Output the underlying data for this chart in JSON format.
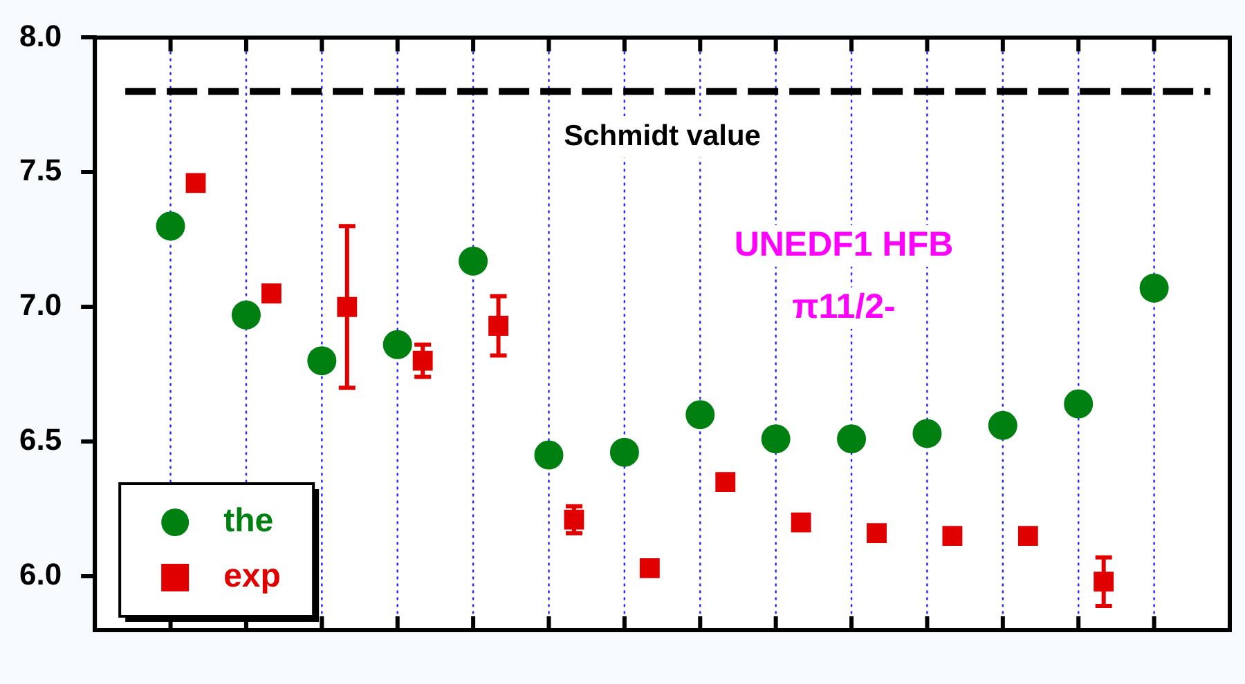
{
  "chart_data": {
    "type": "scatter",
    "annotations": [
      "UNEDF1 HFB",
      "π11/2-"
    ],
    "categories": [
      null,
      null,
      null,
      null,
      null,
      null,
      null,
      null,
      null,
      null,
      null,
      null,
      null,
      null
    ],
    "ylim": [
      5.8,
      8.0
    ],
    "yticks": [
      {
        "value": 6,
        "label": "6.0"
      },
      {
        "value": 6.5,
        "label": "6.5"
      },
      {
        "value": 7,
        "label": "7.0"
      },
      {
        "value": 7.5,
        "label": "7.5"
      },
      {
        "value": 8,
        "label": "8.0"
      }
    ],
    "grid": "x",
    "legend": "bottom left",
    "series": [
      {
        "name": "the",
        "color": "#008010",
        "marker": "circle",
        "values": [
          7.3,
          6.97,
          6.8,
          6.86,
          7.17,
          6.45,
          6.46,
          6.6,
          6.51,
          6.51,
          6.53,
          6.56,
          6.64,
          7.07
        ]
      },
      {
        "name": "exp",
        "color": "#e00000",
        "marker": "square",
        "values": [
          7.46,
          7.05,
          7.0,
          6.8,
          6.93,
          6.21,
          6.03,
          6.35,
          6.2,
          6.16,
          6.15,
          6.15,
          5.98,
          null
        ],
        "errors": [
          null,
          null,
          0.3,
          0.06,
          0.11,
          0.05,
          null,
          null,
          null,
          null,
          null,
          null,
          0.09,
          null
        ]
      }
    ],
    "ref_lines": [
      {
        "axis": "y",
        "value": 7.8,
        "label": "Schmidt value",
        "color": "#000000",
        "line_style": "dashed"
      }
    ]
  }
}
